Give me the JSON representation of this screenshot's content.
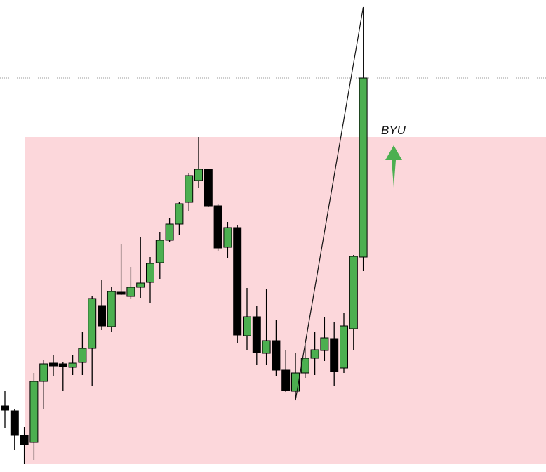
{
  "chart_data": {
    "type": "candlestick",
    "title": "",
    "xlabel": "",
    "ylabel": "",
    "grid": false,
    "ylim": [
      0,
      70
    ],
    "colors": {
      "up": "#4caf50",
      "down": "#000000",
      "zone": "#fcd7db",
      "arrow": "#4caf50"
    },
    "candles": [
      {
        "o": 12.2,
        "h": 14.3,
        "l": 9.0,
        "c": 11.6
      },
      {
        "o": 11.5,
        "h": 11.8,
        "l": 6.0,
        "c": 8.0
      },
      {
        "o": 8.0,
        "h": 9.2,
        "l": 4.0,
        "c": 6.7
      },
      {
        "o": 7.0,
        "h": 16.9,
        "l": 4.5,
        "c": 15.7
      },
      {
        "o": 15.7,
        "h": 18.8,
        "l": 11.7,
        "c": 18.2
      },
      {
        "o": 18.3,
        "h": 19.5,
        "l": 16.5,
        "c": 17.9
      },
      {
        "o": 18.2,
        "h": 18.4,
        "l": 14.3,
        "c": 17.8
      },
      {
        "o": 17.7,
        "h": 19.4,
        "l": 16.6,
        "c": 18.3
      },
      {
        "o": 18.4,
        "h": 22.7,
        "l": 16.6,
        "c": 20.4
      },
      {
        "o": 20.4,
        "h": 27.8,
        "l": 15.0,
        "c": 27.5
      },
      {
        "o": 26.5,
        "h": 30.1,
        "l": 23.0,
        "c": 23.6
      },
      {
        "o": 23.5,
        "h": 29.1,
        "l": 22.7,
        "c": 28.5
      },
      {
        "o": 28.4,
        "h": 35.3,
        "l": 28.0,
        "c": 28.1
      },
      {
        "o": 27.8,
        "h": 32.0,
        "l": 27.5,
        "c": 29.1
      },
      {
        "o": 29.1,
        "h": 36.3,
        "l": 27.6,
        "c": 29.7
      },
      {
        "o": 29.8,
        "h": 33.4,
        "l": 26.8,
        "c": 32.5
      },
      {
        "o": 32.6,
        "h": 37.0,
        "l": 30.3,
        "c": 35.8
      },
      {
        "o": 35.8,
        "h": 39.0,
        "l": 35.6,
        "c": 38.1
      },
      {
        "o": 38.1,
        "h": 41.2,
        "l": 36.5,
        "c": 41.0
      },
      {
        "o": 41.2,
        "h": 45.3,
        "l": 40.0,
        "c": 45.0
      },
      {
        "o": 44.3,
        "h": 50.5,
        "l": 43.3,
        "c": 45.9
      },
      {
        "o": 45.9,
        "h": 45.9,
        "l": 40.5,
        "c": 40.6
      },
      {
        "o": 40.7,
        "h": 40.9,
        "l": 34.3,
        "c": 34.7
      },
      {
        "o": 34.8,
        "h": 38.4,
        "l": 33.3,
        "c": 37.6
      },
      {
        "o": 37.6,
        "h": 38.0,
        "l": 21.2,
        "c": 22.3
      },
      {
        "o": 22.2,
        "h": 29.0,
        "l": 20.2,
        "c": 24.9
      },
      {
        "o": 24.9,
        "h": 26.4,
        "l": 18.0,
        "c": 19.8
      },
      {
        "o": 19.7,
        "h": 28.8,
        "l": 18.0,
        "c": 21.5
      },
      {
        "o": 21.5,
        "h": 24.5,
        "l": 16.5,
        "c": 17.3
      },
      {
        "o": 17.3,
        "h": 20.2,
        "l": 14.2,
        "c": 14.4
      },
      {
        "o": 14.3,
        "h": 19.7,
        "l": 13.0,
        "c": 16.9
      },
      {
        "o": 16.9,
        "h": 21.0,
        "l": 16.2,
        "c": 19.0
      },
      {
        "o": 19.0,
        "h": 22.8,
        "l": 16.6,
        "c": 20.2
      },
      {
        "o": 20.1,
        "h": 24.8,
        "l": 18.6,
        "c": 21.9
      },
      {
        "o": 21.8,
        "h": 24.2,
        "l": 15.0,
        "c": 17.1
      },
      {
        "o": 17.6,
        "h": 25.4,
        "l": 16.9,
        "c": 23.6
      },
      {
        "o": 23.2,
        "h": 33.7,
        "l": 20.2,
        "c": 33.5
      },
      {
        "o": 33.4,
        "h": 58.9,
        "l": 31.4,
        "c": 58.9
      }
    ],
    "zone": {
      "from_candle": 2,
      "top": 50.5,
      "bottom": 3.9
    },
    "dotted_level": 58.9,
    "trendline": [
      {
        "candle": 30,
        "price": 13.0
      },
      {
        "candle": 37,
        "price": 69.0
      },
      {
        "candle": 37,
        "price": 58.9
      }
    ],
    "annotation": {
      "text": "BYU",
      "arrow": "up"
    }
  }
}
